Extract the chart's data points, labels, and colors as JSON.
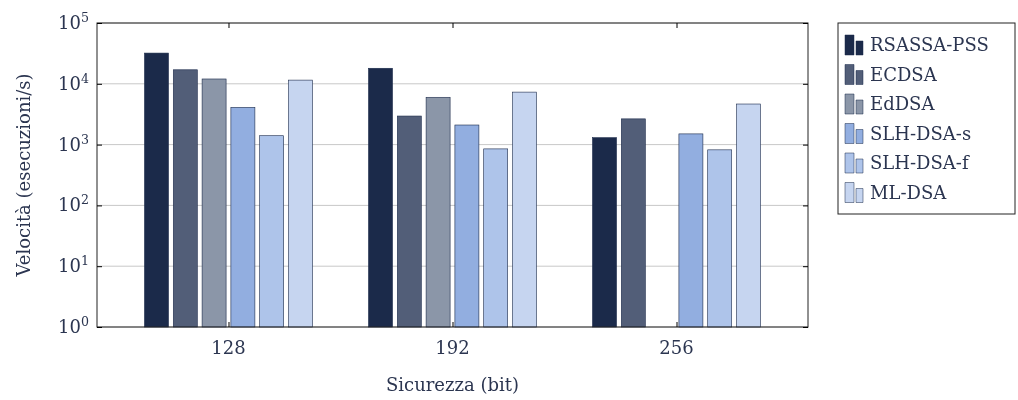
{
  "chart_data": {
    "type": "bar",
    "xlabel": "Sicurezza (bit)",
    "ylabel": "Velocità (esecuzioni/s)",
    "categories": [
      "128",
      "192",
      "256"
    ],
    "log": true,
    "ylim": [
      1,
      100000
    ],
    "yticks": [
      {
        "value": 1,
        "label": "10$^{0}$"
      },
      {
        "value": 10,
        "label": "10$^{1}$"
      },
      {
        "value": 100,
        "label": "10$^{2}$"
      },
      {
        "value": 1000,
        "label": "10$^{3}$"
      },
      {
        "value": 10000,
        "label": "10$^{4}$"
      },
      {
        "value": 100000,
        "label": "10$^{5}$"
      }
    ],
    "grid": "y",
    "legend": "top right",
    "series": [
      {
        "name": "RSASSA-PSS",
        "color": "#1b2a4a",
        "values": [
          32000,
          18000,
          1300
        ]
      },
      {
        "name": "ECDSA",
        "color": "#525e78",
        "values": [
          17000,
          2950,
          2650
        ]
      },
      {
        "name": "EdDSA",
        "color": "#8b96a8",
        "values": [
          12000,
          6000,
          null
        ]
      },
      {
        "name": "SLH-DSA-s",
        "color": "#92aee0",
        "values": [
          4100,
          2100,
          1500
        ]
      },
      {
        "name": "SLH-DSA-f",
        "color": "#aec4ea",
        "values": [
          1400,
          850,
          820
        ]
      },
      {
        "name": "ML-DSA",
        "color": "#c6d5f0",
        "values": [
          11500,
          7300,
          4650
        ]
      }
    ]
  }
}
